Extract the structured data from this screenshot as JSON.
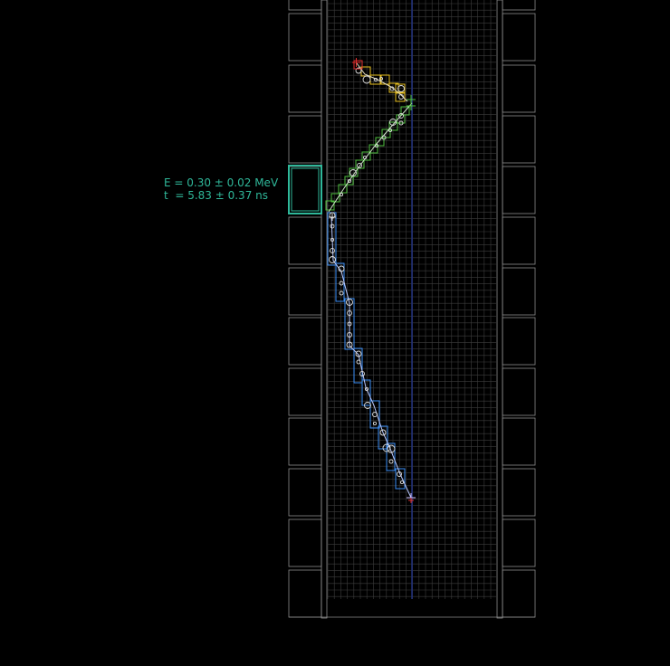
{
  "annotation": {
    "energy": "E = 0.30 ± 0.02 MeV",
    "time": "t  = 5.83 ± 0.37 ns",
    "color": "#2fb89a"
  },
  "colors": {
    "background": "#000000",
    "detector_frame": "#8c8c8c",
    "grid": "#3d3d3d",
    "wire": "#1f2f7a",
    "track_blue": "#3a8ef6",
    "track_green": "#4fbf3f",
    "track_yellow": "#e8c020",
    "track_red": "#e03030",
    "hit_marker": "#dcdcdc",
    "selected_cluster": "#2fb89a"
  },
  "icons": {
    "vertex_marker": "cross-icon",
    "hit": "circle-icon"
  }
}
